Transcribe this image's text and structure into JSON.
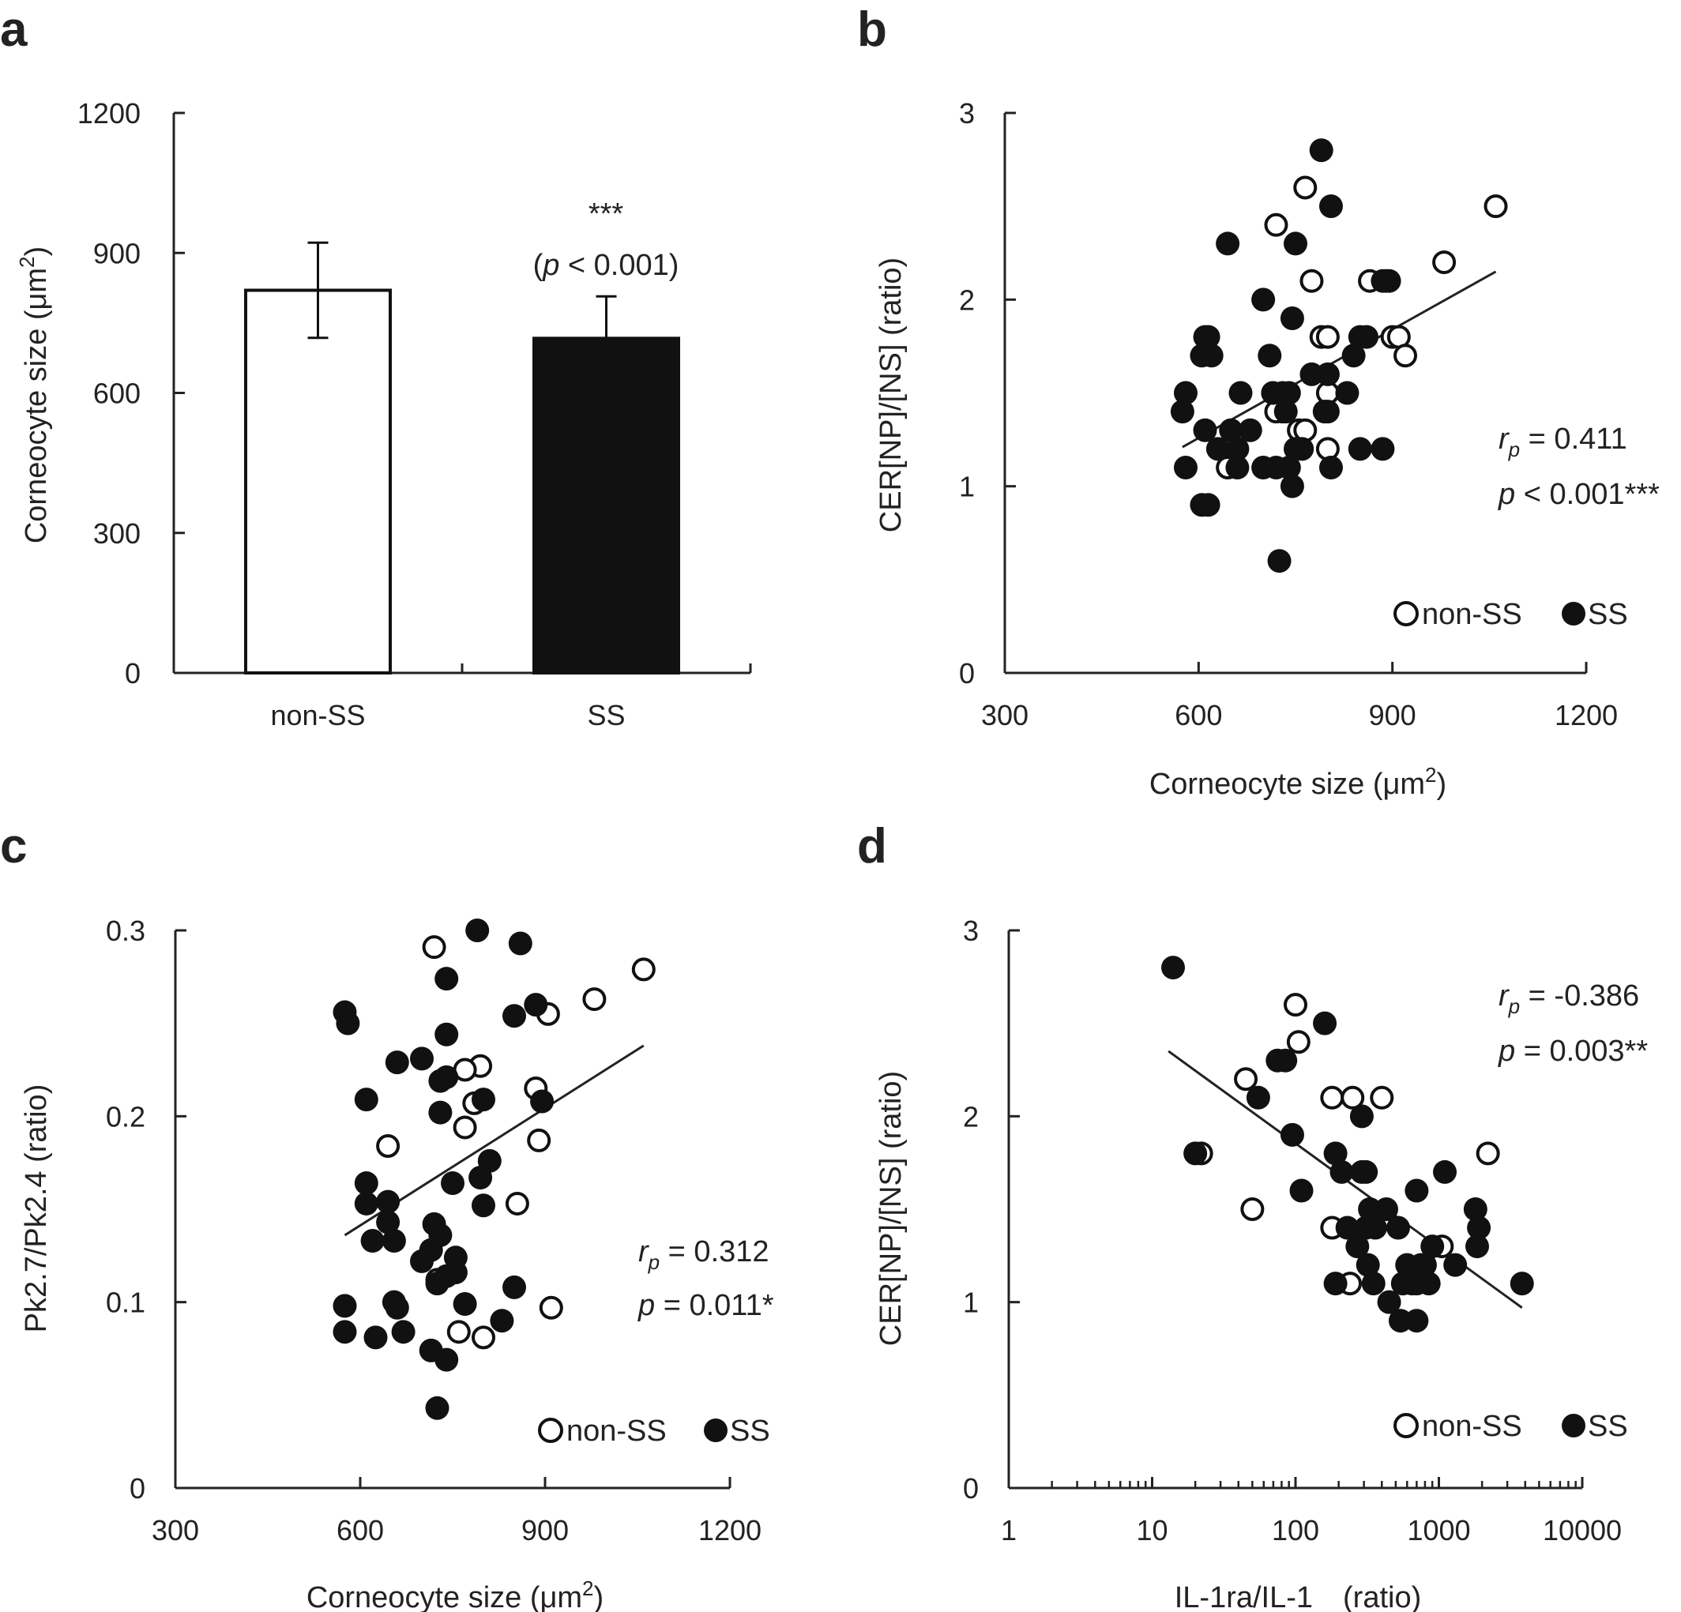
{
  "chart_data": [
    {
      "panel": "a",
      "type": "bar",
      "categories": [
        "non-SS",
        "SS"
      ],
      "values": [
        820,
        717
      ],
      "errors": [
        102,
        90
      ],
      "bar_colors": [
        "#ffffff",
        "#111111"
      ],
      "ylabel": "Corneocyte size (μm²)",
      "ylabel_main": "Corneocyte size (",
      "ylabel_unit": "μm",
      "ylabel_sup": "2",
      "ylabel_close": ")",
      "yticks": [
        0,
        300,
        600,
        900,
        1200
      ],
      "ylim": [
        0,
        1200
      ],
      "annotation_stars": "***",
      "annotation_p_italic": "p",
      "annotation_p_rest": " < 0.001)",
      "annotation_open": "("
    },
    {
      "panel": "b",
      "type": "scatter",
      "xlabel": "Corneocyte size (μm²)",
      "xlabel_main": "Corneocyte size (",
      "xlabel_unit": "μm",
      "xlabel_sup": "2",
      "xlabel_close": ")",
      "ylabel": "CER[NP]/[NS] (ratio)",
      "xticks": [
        300,
        600,
        900,
        1200
      ],
      "yticks": [
        0,
        1,
        2,
        3
      ],
      "xlim": [
        300,
        1200
      ],
      "ylim": [
        0,
        3
      ],
      "series": [
        {
          "name": "non-SS",
          "fill": "open",
          "points": [
            [
              720,
              2.4
            ],
            [
              765,
              2.6
            ],
            [
              775,
              2.1
            ],
            [
              1060,
              2.5
            ],
            [
              980,
              2.2
            ],
            [
              865,
              2.1
            ],
            [
              890,
              2.1
            ],
            [
              900,
              1.8
            ],
            [
              910,
              1.8
            ],
            [
              920,
              1.7
            ],
            [
              790,
              1.8
            ],
            [
              800,
              1.8
            ],
            [
              800,
              1.5
            ],
            [
              755,
              1.3
            ],
            [
              765,
              1.3
            ],
            [
              730,
              1.4
            ],
            [
              720,
              1.4
            ],
            [
              800,
              1.2
            ],
            [
              645,
              1.1
            ]
          ]
        },
        {
          "name": "SS",
          "fill": "filled",
          "points": [
            [
              790,
              2.8
            ],
            [
              805,
              2.5
            ],
            [
              645,
              2.3
            ],
            [
              750,
              2.3
            ],
            [
              700,
              2.0
            ],
            [
              885,
              2.1
            ],
            [
              895,
              2.1
            ],
            [
              610,
              1.8
            ],
            [
              615,
              1.8
            ],
            [
              745,
              1.9
            ],
            [
              605,
              1.7
            ],
            [
              620,
              1.7
            ],
            [
              710,
              1.7
            ],
            [
              850,
              1.8
            ],
            [
              860,
              1.8
            ],
            [
              775,
              1.6
            ],
            [
              800,
              1.6
            ],
            [
              840,
              1.7
            ],
            [
              580,
              1.5
            ],
            [
              665,
              1.5
            ],
            [
              715,
              1.5
            ],
            [
              730,
              1.5
            ],
            [
              740,
              1.5
            ],
            [
              830,
              1.5
            ],
            [
              575,
              1.4
            ],
            [
              735,
              1.4
            ],
            [
              795,
              1.4
            ],
            [
              800,
              1.4
            ],
            [
              610,
              1.3
            ],
            [
              650,
              1.3
            ],
            [
              680,
              1.3
            ],
            [
              630,
              1.2
            ],
            [
              660,
              1.2
            ],
            [
              750,
              1.2
            ],
            [
              760,
              1.2
            ],
            [
              850,
              1.2
            ],
            [
              885,
              1.2
            ],
            [
              580,
              1.1
            ],
            [
              660,
              1.1
            ],
            [
              700,
              1.1
            ],
            [
              720,
              1.1
            ],
            [
              740,
              1.1
            ],
            [
              805,
              1.1
            ],
            [
              605,
              0.9
            ],
            [
              615,
              0.9
            ],
            [
              745,
              1.0
            ],
            [
              725,
              0.6
            ]
          ]
        }
      ],
      "trend": [
        [
          575,
          1.21
        ],
        [
          1060,
          2.15
        ]
      ],
      "stat_r_italic": "r",
      "stat_r_sub": "p",
      "stat_r_rest": " = 0.411",
      "stat_p_italic": "p",
      "stat_p_rest": " < 0.001***"
    },
    {
      "panel": "c",
      "type": "scatter",
      "xlabel": "Corneocyte size (μm²)",
      "xlabel_main": "Corneocyte size (",
      "xlabel_unit": "μm",
      "xlabel_sup": "2",
      "xlabel_close": ")",
      "ylabel": "Pk2.7/Pk2.4 (ratio)",
      "xticks": [
        300,
        600,
        900,
        1200
      ],
      "ytick_labels": [
        "0",
        "0.1",
        "0.2",
        "0.3"
      ],
      "yticks": [
        0,
        0.1,
        0.2,
        0.3
      ],
      "xlim": [
        300,
        1200
      ],
      "ylim": [
        0,
        0.3
      ],
      "series": [
        {
          "name": "non-SS",
          "fill": "open",
          "points": [
            [
              720,
              0.291
            ],
            [
              1060,
              0.279
            ],
            [
              980,
              0.263
            ],
            [
              905,
              0.255
            ],
            [
              795,
              0.227
            ],
            [
              770,
              0.225
            ],
            [
              785,
              0.207
            ],
            [
              885,
              0.215
            ],
            [
              770,
              0.194
            ],
            [
              890,
              0.187
            ],
            [
              645,
              0.184
            ],
            [
              855,
              0.153
            ],
            [
              725,
              0.112
            ],
            [
              760,
              0.084
            ],
            [
              800,
              0.081
            ],
            [
              910,
              0.097
            ]
          ]
        },
        {
          "name": "SS",
          "fill": "filled",
          "points": [
            [
              790,
              0.3
            ],
            [
              860,
              0.293
            ],
            [
              740,
              0.274
            ],
            [
              575,
              0.256
            ],
            [
              580,
              0.25
            ],
            [
              885,
              0.26
            ],
            [
              850,
              0.254
            ],
            [
              740,
              0.244
            ],
            [
              660,
              0.229
            ],
            [
              700,
              0.231
            ],
            [
              730,
              0.219
            ],
            [
              740,
              0.221
            ],
            [
              610,
              0.209
            ],
            [
              800,
              0.209
            ],
            [
              895,
              0.208
            ],
            [
              730,
              0.202
            ],
            [
              810,
              0.176
            ],
            [
              795,
              0.167
            ],
            [
              610,
              0.164
            ],
            [
              750,
              0.164
            ],
            [
              610,
              0.153
            ],
            [
              645,
              0.154
            ],
            [
              800,
              0.152
            ],
            [
              645,
              0.143
            ],
            [
              720,
              0.142
            ],
            [
              620,
              0.133
            ],
            [
              655,
              0.133
            ],
            [
              730,
              0.136
            ],
            [
              715,
              0.128
            ],
            [
              700,
              0.122
            ],
            [
              755,
              0.124
            ],
            [
              740,
              0.114
            ],
            [
              755,
              0.116
            ],
            [
              725,
              0.11
            ],
            [
              850,
              0.108
            ],
            [
              575,
              0.098
            ],
            [
              655,
              0.1
            ],
            [
              660,
              0.097
            ],
            [
              770,
              0.099
            ],
            [
              575,
              0.084
            ],
            [
              625,
              0.081
            ],
            [
              670,
              0.084
            ],
            [
              715,
              0.074
            ],
            [
              740,
              0.069
            ],
            [
              830,
              0.09
            ],
            [
              725,
              0.043
            ]
          ]
        }
      ],
      "trend": [
        [
          575,
          0.136
        ],
        [
          1060,
          0.238
        ]
      ],
      "stat_r_italic": "r",
      "stat_r_sub": "p",
      "stat_r_rest": " = 0.312",
      "stat_p_italic": "p",
      "stat_p_rest": " = 0.011*"
    },
    {
      "panel": "d",
      "type": "scatter",
      "x_scale": "log",
      "xlabel": "IL-1ra/IL-1　(ratio)",
      "ylabel": "CER[NP]/[NS] (ratio)",
      "xticks": [
        1,
        10,
        100,
        1000,
        10000
      ],
      "yticks": [
        0,
        1,
        2,
        3
      ],
      "xlim": [
        1,
        10000
      ],
      "ylim": [
        0,
        3
      ],
      "series": [
        {
          "name": "non-SS",
          "fill": "open",
          "points": [
            [
              100,
              2.6
            ],
            [
              105,
              2.4
            ],
            [
              45,
              2.2
            ],
            [
              180,
              2.1
            ],
            [
              250,
              2.1
            ],
            [
              400,
              2.1
            ],
            [
              22,
              1.8
            ],
            [
              2200,
              1.8
            ],
            [
              180,
              1.4
            ],
            [
              50,
              1.5
            ],
            [
              1050,
              1.3
            ],
            [
              240,
              1.1
            ]
          ]
        },
        {
          "name": "SS",
          "fill": "filled",
          "points": [
            [
              14,
              2.8
            ],
            [
              160,
              2.5
            ],
            [
              75,
              2.3
            ],
            [
              85,
              2.3
            ],
            [
              55,
              2.1
            ],
            [
              290,
              2.0
            ],
            [
              95,
              1.9
            ],
            [
              20,
              1.8
            ],
            [
              190,
              1.8
            ],
            [
              210,
              1.7
            ],
            [
              290,
              1.7
            ],
            [
              310,
              1.7
            ],
            [
              1100,
              1.7
            ],
            [
              700,
              1.6
            ],
            [
              110,
              1.6
            ],
            [
              330,
              1.5
            ],
            [
              430,
              1.5
            ],
            [
              1800,
              1.5
            ],
            [
              230,
              1.4
            ],
            [
              310,
              1.4
            ],
            [
              360,
              1.4
            ],
            [
              520,
              1.4
            ],
            [
              1900,
              1.4
            ],
            [
              270,
              1.3
            ],
            [
              900,
              1.3
            ],
            [
              1850,
              1.3
            ],
            [
              320,
              1.2
            ],
            [
              600,
              1.2
            ],
            [
              750,
              1.2
            ],
            [
              800,
              1.2
            ],
            [
              1300,
              1.2
            ],
            [
              190,
              1.1
            ],
            [
              350,
              1.1
            ],
            [
              560,
              1.1
            ],
            [
              650,
              1.1
            ],
            [
              700,
              1.1
            ],
            [
              850,
              1.1
            ],
            [
              3800,
              1.1
            ],
            [
              450,
              1.0
            ],
            [
              540,
              0.9
            ],
            [
              700,
              0.9
            ]
          ]
        }
      ],
      "trend": [
        [
          13,
          2.35
        ],
        [
          3800,
          0.97
        ]
      ],
      "stat_r_italic": "r",
      "stat_r_sub": "p",
      "stat_r_rest": " = -0.386",
      "stat_p_italic": "p",
      "stat_p_rest": " = 0.003**"
    }
  ],
  "panels": {
    "a": {
      "letter": "a"
    },
    "b": {
      "letter": "b"
    },
    "c": {
      "letter": "c"
    },
    "d": {
      "letter": "d"
    }
  },
  "legend": {
    "non_ss": "non-SS",
    "ss": "SS"
  }
}
